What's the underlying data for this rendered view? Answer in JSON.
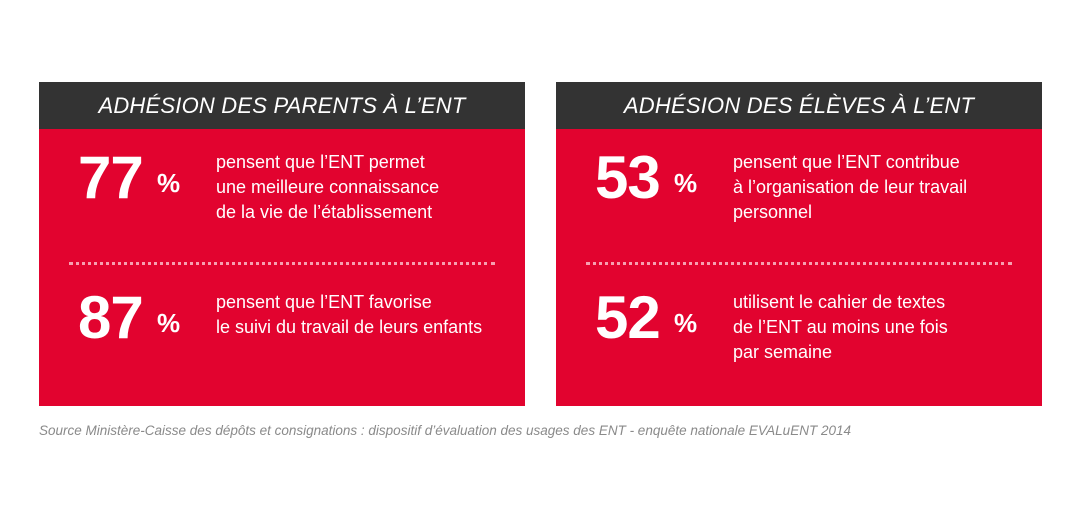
{
  "panels": [
    {
      "title": "ADHÉSION DES PARENTS À L’ENT",
      "stats": [
        {
          "value": "77",
          "unit": "%",
          "text": "pensent que l’ENT permet\nune meilleure connaissance\nde la vie de l’établissement"
        },
        {
          "value": "87",
          "unit": "%",
          "text": "pensent que l’ENT favorise\nle suivi du travail de leurs enfants"
        }
      ]
    },
    {
      "title": "ADHÉSION DES ÉLÈVES À L’ENT",
      "stats": [
        {
          "value": "53",
          "unit": "%",
          "text": "pensent que l’ENT contribue\nà l’organisation de leur travail\npersonnel"
        },
        {
          "value": "52",
          "unit": "%",
          "text": "utilisent le cahier de textes\nde l’ENT au moins une fois\npar semaine"
        }
      ]
    }
  ],
  "source": "Source Ministère-Caisse des dépôts et consignations : dispositif d’évaluation des usages des ENT - enquête nationale EVALuENT 2014",
  "colors": {
    "panel_background": "#e2032f",
    "header_background": "#333333",
    "text": "#ffffff",
    "source_text": "#8a8a8a"
  }
}
